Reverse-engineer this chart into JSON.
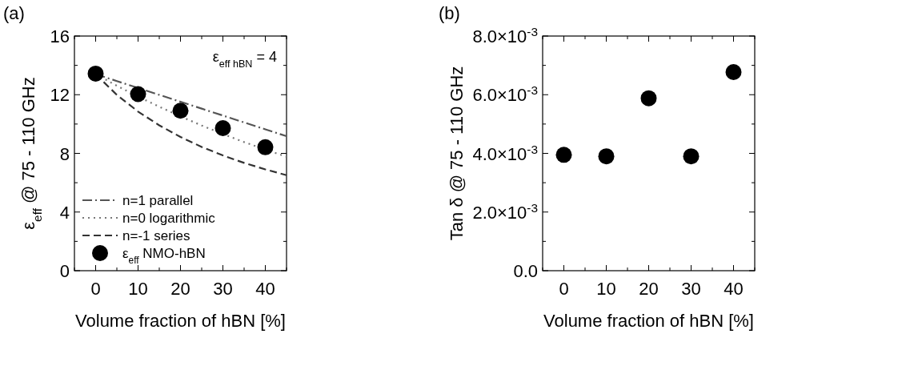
{
  "chart_data": [
    {
      "type": "line",
      "title": "(a)",
      "xlabel": "Volume fraction of hBN [%]",
      "ylabel": "ε$_{eff}$ @ 75 - 110 GHz",
      "annotations": [
        "ε$_{eff hBN}$ = 4"
      ],
      "xlim": [
        -5,
        45
      ],
      "xticks": [
        {
          "value": -5,
          "label": null
        },
        0,
        {
          "value": 5,
          "label": null
        },
        10,
        {
          "value": 15,
          "label": null
        },
        20,
        {
          "value": 25,
          "label": null
        },
        30,
        {
          "value": 35,
          "label": null
        },
        40,
        {
          "value": 45,
          "label": null
        }
      ],
      "ylim": [
        0,
        16
      ],
      "yticks": [
        0,
        {
          "value": 2,
          "label": null
        },
        4,
        {
          "value": 6,
          "label": null
        },
        8,
        {
          "value": 10,
          "label": null
        },
        12,
        {
          "value": 14,
          "label": null
        },
        16
      ],
      "legend": "bottom left",
      "series": [
        {
          "name": "n=1 parallel",
          "line_style": "dashdot",
          "color": "#555555",
          "x": [
            0,
            5,
            10,
            15,
            20,
            25,
            30,
            35,
            40,
            45
          ],
          "values": [
            13.4,
            12.93,
            12.46,
            11.99,
            11.52,
            11.05,
            10.58,
            10.11,
            9.64,
            9.17
          ]
        },
        {
          "name": "n=0 logarithmic",
          "line_style": "dotted",
          "color": "#777777",
          "x": [
            0,
            5,
            10,
            15,
            20,
            25,
            30,
            35,
            40,
            45
          ],
          "values": [
            13.4,
            12.61,
            11.87,
            11.18,
            10.52,
            9.9,
            9.32,
            8.77,
            8.26,
            7.77
          ]
        },
        {
          "name": "n=-1 series",
          "line_style": "dashed",
          "color": "#333333",
          "x": [
            0,
            5,
            10,
            15,
            20,
            25,
            30,
            35,
            40,
            45
          ],
          "values": [
            13.4,
            11.99,
            10.85,
            9.91,
            9.12,
            8.44,
            7.86,
            7.35,
            6.91,
            6.51
          ]
        },
        {
          "name": "ε$_{eff}$ NMO-hBN",
          "type": "scatter",
          "marker": "circle",
          "color": "#000000",
          "x": [
            0,
            10,
            20,
            30,
            40
          ],
          "values": [
            13.44,
            12.04,
            10.91,
            9.72,
            8.42
          ]
        }
      ]
    },
    {
      "type": "scatter",
      "title": "(b)",
      "xlabel": "Volume fraction of hBN [%]",
      "ylabel": "Tan δ @ 75 - 110 GHz",
      "xlim": [
        -5,
        45
      ],
      "xticks": [
        {
          "value": -5,
          "label": null
        },
        0,
        {
          "value": 5,
          "label": null
        },
        10,
        {
          "value": 15,
          "label": null
        },
        20,
        {
          "value": 25,
          "label": null
        },
        30,
        {
          "value": 35,
          "label": null
        },
        40,
        {
          "value": 45,
          "label": null
        }
      ],
      "ylim": [
        0,
        0.008
      ],
      "yticks": [
        {
          "value": 0,
          "label": "0.0"
        },
        {
          "value": 0.001,
          "label": null
        },
        {
          "value": 0.002,
          "label": "2.0×10$^{-3}$"
        },
        {
          "value": 0.003,
          "label": null
        },
        {
          "value": 0.004,
          "label": "4.0×10$^{-3}$"
        },
        {
          "value": 0.005,
          "label": null
        },
        {
          "value": 0.006,
          "label": "6.0×10$^{-3}$"
        },
        {
          "value": 0.007,
          "label": null
        },
        {
          "value": 0.008,
          "label": "8.0×10$^{-3}$"
        }
      ],
      "marker": "circle",
      "color": "#000000",
      "x": [
        0,
        10,
        20,
        30,
        40
      ],
      "values": [
        0.00395,
        0.0039,
        0.00588,
        0.0039,
        0.00677
      ]
    }
  ]
}
